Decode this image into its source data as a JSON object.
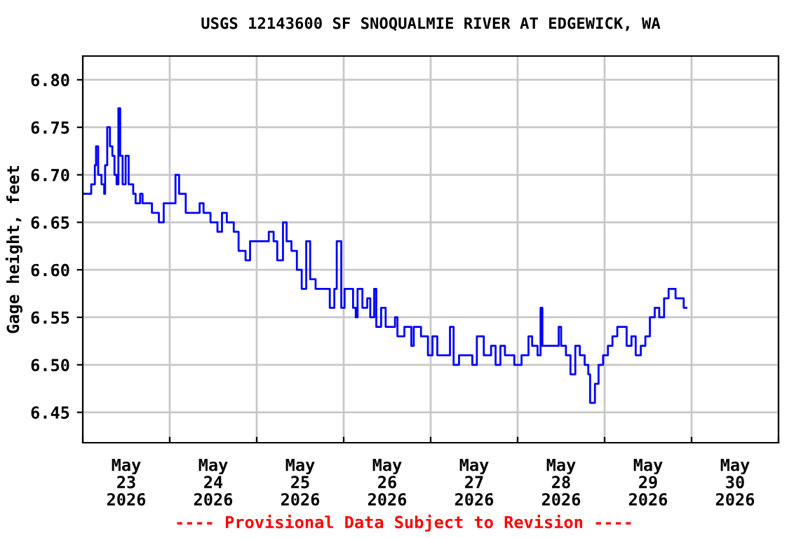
{
  "chart_data": {
    "type": "step",
    "title": "USGS 12143600 SF SNOQUALMIE RIVER AT EDGEWICK, WA",
    "ylabel": "Gage height, feet",
    "annotations": [
      "---- Provisional Data Subject to Revision ----"
    ],
    "grid": true,
    "marker": "none",
    "line_style": "solid",
    "xlim": [
      "2026-05-23T00:00",
      "2026-05-31T00:00"
    ],
    "xticks": [
      {
        "value": "2026-05-23T00:00",
        "label": null
      },
      {
        "value": "2026-05-24T00:00",
        "label": null
      },
      {
        "value": "2026-05-25T00:00",
        "label": null
      },
      {
        "value": "2026-05-26T00:00",
        "label": null
      },
      {
        "value": "2026-05-27T00:00",
        "label": null
      },
      {
        "value": "2026-05-28T00:00",
        "label": null
      },
      {
        "value": "2026-05-29T00:00",
        "label": null
      },
      {
        "value": "2026-05-30T00:00",
        "label": null
      },
      {
        "value": "2026-05-31T00:00",
        "label": null
      },
      {
        "value": "2026-05-23T12:00",
        "label": "May\n23\n2026"
      },
      {
        "value": "2026-05-24T12:00",
        "label": "May\n24\n2026"
      },
      {
        "value": "2026-05-25T12:00",
        "label": "May\n25\n2026"
      },
      {
        "value": "2026-05-26T12:00",
        "label": "May\n26\n2026"
      },
      {
        "value": "2026-05-27T12:00",
        "label": "May\n27\n2026"
      },
      {
        "value": "2026-05-28T12:00",
        "label": "May\n28\n2026"
      },
      {
        "value": "2026-05-29T12:00",
        "label": "May\n29\n2026"
      },
      {
        "value": "2026-05-30T12:00",
        "label": "May\n30\n2026"
      }
    ],
    "ylim": [
      6.418,
      6.825
    ],
    "yticks": [
      {
        "value": 6.45,
        "label": "6.45"
      },
      {
        "value": 6.5,
        "label": "6.50"
      },
      {
        "value": 6.55,
        "label": "6.55"
      },
      {
        "value": 6.6,
        "label": "6.60"
      },
      {
        "value": 6.65,
        "label": "6.65"
      },
      {
        "value": 6.7,
        "label": "6.70"
      },
      {
        "value": 6.75,
        "label": "6.75"
      },
      {
        "value": 6.8,
        "label": "6.80"
      }
    ],
    "series": [
      {
        "color": "#0000ff",
        "x": [
          "2026-05-23T00:00",
          "2026-05-23T01:40",
          "2026-05-23T02:20",
          "2026-05-23T03:20",
          "2026-05-23T03:40",
          "2026-05-23T04:15",
          "2026-05-23T05:10",
          "2026-05-23T05:55",
          "2026-05-23T06:10",
          "2026-05-23T06:45",
          "2026-05-23T07:30",
          "2026-05-23T08:10",
          "2026-05-23T08:45",
          "2026-05-23T09:20",
          "2026-05-23T09:50",
          "2026-05-23T10:20",
          "2026-05-23T11:00",
          "2026-05-23T11:50",
          "2026-05-23T12:40",
          "2026-05-23T13:55",
          "2026-05-23T14:35",
          "2026-05-23T15:50",
          "2026-05-23T16:30",
          "2026-05-23T17:50",
          "2026-05-23T19:05",
          "2026-05-23T21:00",
          "2026-05-23T22:20",
          "2026-05-24T00:15",
          "2026-05-24T01:35",
          "2026-05-24T01:50",
          "2026-05-24T02:35",
          "2026-05-24T03:30",
          "2026-05-24T04:25",
          "2026-05-24T06:40",
          "2026-05-24T08:15",
          "2026-05-24T09:20",
          "2026-05-24T11:15",
          "2026-05-24T13:10",
          "2026-05-24T14:25",
          "2026-05-24T15:45",
          "2026-05-24T17:40",
          "2026-05-24T19:00",
          "2026-05-24T20:55",
          "2026-05-24T22:10",
          "2026-05-25T00:45",
          "2026-05-25T03:20",
          "2026-05-25T04:40",
          "2026-05-25T05:40",
          "2026-05-25T07:15",
          "2026-05-25T08:15",
          "2026-05-25T09:35",
          "2026-05-25T11:05",
          "2026-05-25T12:25",
          "2026-05-25T13:40",
          "2026-05-25T14:45",
          "2026-05-25T16:15",
          "2026-05-25T18:15",
          "2026-05-25T20:10",
          "2026-05-25T21:25",
          "2026-05-25T22:05",
          "2026-05-25T22:45",
          "2026-05-25T23:20",
          "2026-05-26T00:15",
          "2026-05-26T01:15",
          "2026-05-26T02:35",
          "2026-05-26T03:20",
          "2026-05-26T03:50",
          "2026-05-26T05:10",
          "2026-05-26T06:30",
          "2026-05-26T07:20",
          "2026-05-26T08:25",
          "2026-05-26T09:00",
          "2026-05-26T10:20",
          "2026-05-26T11:35",
          "2026-05-26T14:10",
          "2026-05-26T14:50",
          "2026-05-26T16:45",
          "2026-05-26T18:40",
          "2026-05-26T19:20",
          "2026-05-26T21:20",
          "2026-05-26T23:15",
          "2026-05-27T00:30",
          "2026-05-27T01:50",
          "2026-05-27T03:45",
          "2026-05-27T05:20",
          "2026-05-27T06:20",
          "2026-05-27T07:50",
          "2026-05-27T10:10",
          "2026-05-27T11:30",
          "2026-05-27T12:45",
          "2026-05-27T14:40",
          "2026-05-27T16:40",
          "2026-05-27T17:55",
          "2026-05-27T19:15",
          "2026-05-27T20:30",
          "2026-05-27T23:05",
          "2026-05-28T01:05",
          "2026-05-28T03:00",
          "2026-05-28T04:00",
          "2026-05-28T05:30",
          "2026-05-28T06:20",
          "2026-05-28T06:50",
          "2026-05-28T09:25",
          "2026-05-28T11:20",
          "2026-05-28T12:00",
          "2026-05-28T13:20",
          "2026-05-28T14:35",
          "2026-05-28T15:55",
          "2026-05-28T17:10",
          "2026-05-28T18:30",
          "2026-05-28T19:30",
          "2026-05-28T20:00",
          "2026-05-28T21:20",
          "2026-05-28T22:20",
          "2026-05-28T23:35",
          "2026-05-29T00:55",
          "2026-05-29T02:10",
          "2026-05-29T03:30",
          "2026-05-29T04:45",
          "2026-05-29T06:05",
          "2026-05-29T07:25",
          "2026-05-29T08:35",
          "2026-05-29T10:00",
          "2026-05-29T11:15",
          "2026-05-29T12:30",
          "2026-05-29T13:50",
          "2026-05-29T15:05",
          "2026-05-29T16:25",
          "2026-05-29T17:40",
          "2026-05-29T19:00",
          "2026-05-29T19:35",
          "2026-05-29T20:55",
          "2026-05-29T21:50",
          "2026-05-29T22:35"
        ],
        "values": [
          6.68,
          6.68,
          6.69,
          6.71,
          6.73,
          6.7,
          6.69,
          6.68,
          6.71,
          6.75,
          6.73,
          6.72,
          6.7,
          6.69,
          6.77,
          6.72,
          6.69,
          6.72,
          6.69,
          6.68,
          6.67,
          6.68,
          6.67,
          6.67,
          6.66,
          6.65,
          6.67,
          6.67,
          6.7,
          6.7,
          6.68,
          6.68,
          6.66,
          6.66,
          6.67,
          6.66,
          6.65,
          6.64,
          6.66,
          6.65,
          6.64,
          6.62,
          6.61,
          6.63,
          6.63,
          6.64,
          6.63,
          6.61,
          6.65,
          6.63,
          6.62,
          6.6,
          6.58,
          6.63,
          6.59,
          6.58,
          6.58,
          6.56,
          6.58,
          6.63,
          6.63,
          6.56,
          6.58,
          6.58,
          6.56,
          6.55,
          6.58,
          6.56,
          6.57,
          6.55,
          6.58,
          6.54,
          6.56,
          6.54,
          6.55,
          6.53,
          6.54,
          6.52,
          6.54,
          6.53,
          6.51,
          6.53,
          6.51,
          6.51,
          6.54,
          6.5,
          6.51,
          6.51,
          6.5,
          6.53,
          6.51,
          6.52,
          6.5,
          6.52,
          6.51,
          6.5,
          6.51,
          6.53,
          6.52,
          6.51,
          6.56,
          6.52,
          6.52,
          6.54,
          6.52,
          6.51,
          6.49,
          6.52,
          6.51,
          6.5,
          6.49,
          6.46,
          6.48,
          6.5,
          6.51,
          6.52,
          6.53,
          6.54,
          6.54,
          6.52,
          6.53,
          6.51,
          6.52,
          6.53,
          6.55,
          6.56,
          6.55,
          6.57,
          6.58,
          6.58,
          6.57,
          6.57,
          6.56,
          6.56
        ]
      }
    ]
  }
}
